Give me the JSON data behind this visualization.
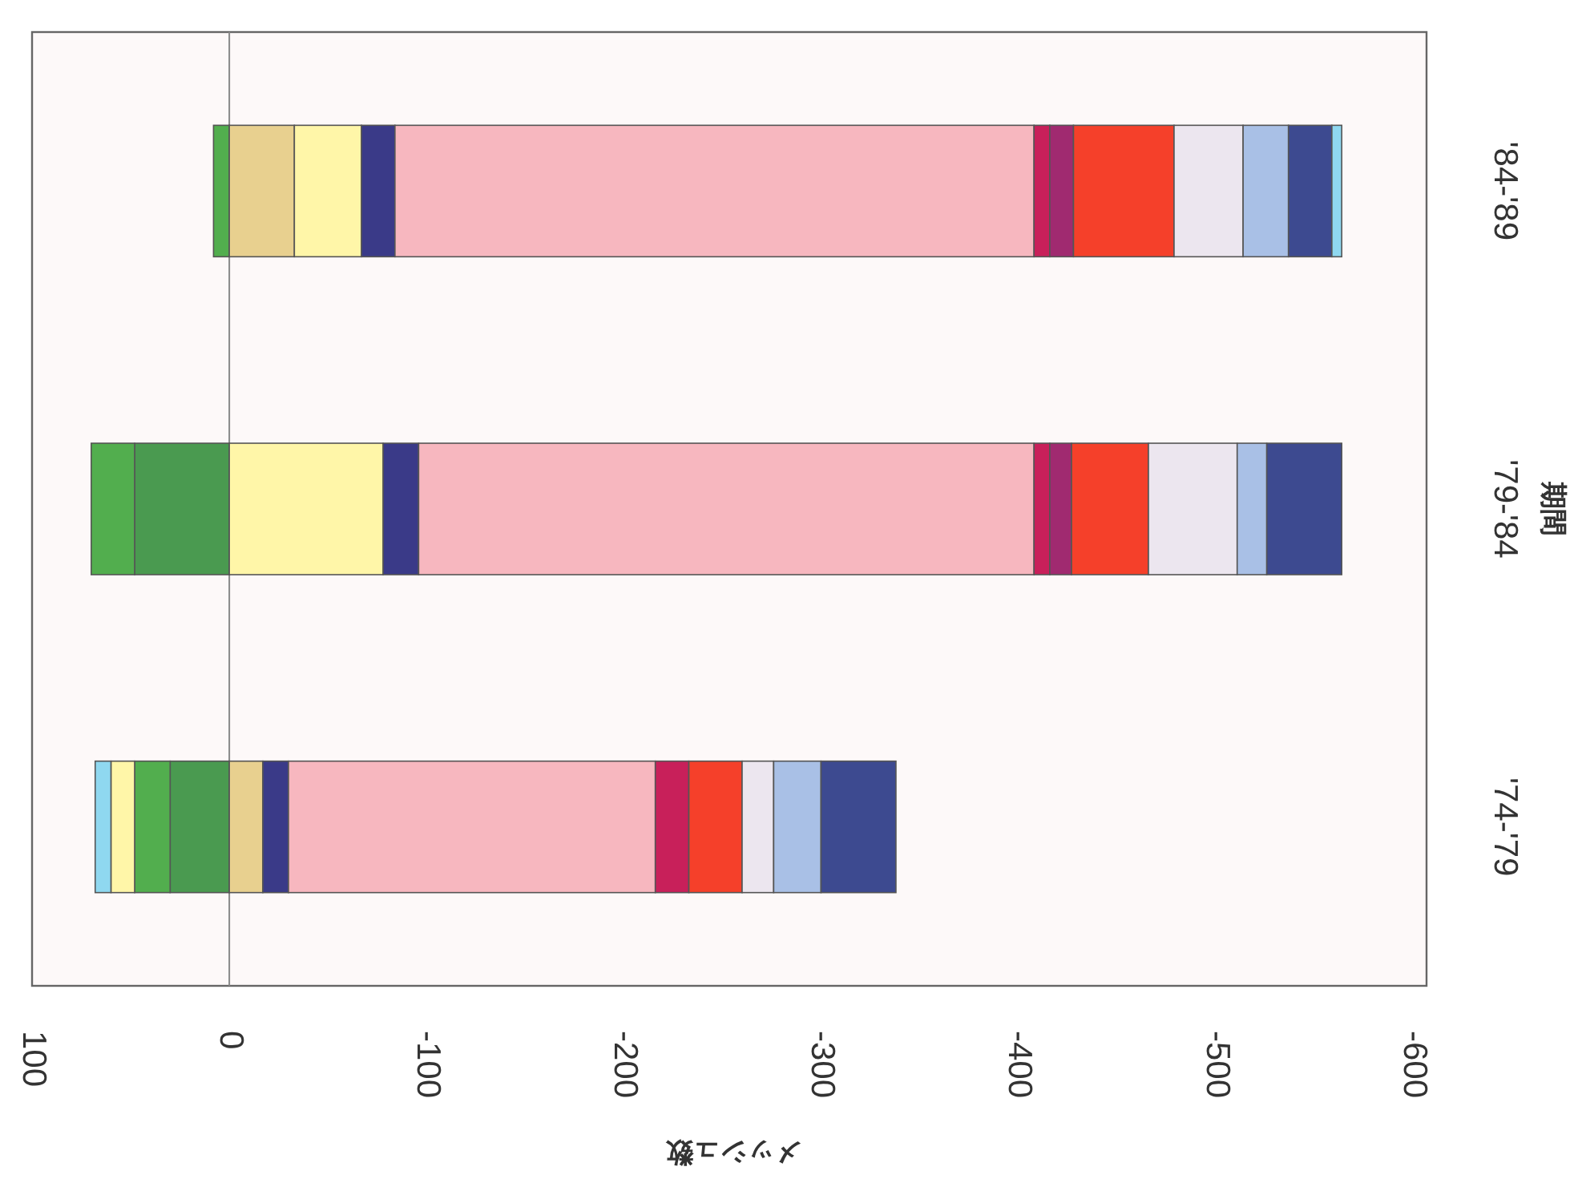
{
  "chart_data": {
    "type": "bar",
    "orientation": "horizontal",
    "stacked": true,
    "xlabel": "メッシュ数",
    "ylabel": "期間",
    "categories": [
      "'84-'89",
      "'79-'84",
      "'74-'79"
    ],
    "xlim": [
      100,
      -607
    ],
    "xticks": [
      100,
      0,
      -100,
      -200,
      -300,
      -400,
      -500,
      -600
    ],
    "ref_lines": [
      {
        "axis": "x",
        "value": 0,
        "color": "#888888"
      }
    ],
    "series": [
      {
        "color": "#4a9a50",
        "values": [
          0,
          48,
          30
        ]
      },
      {
        "color": "#52ae4e",
        "values": [
          8,
          22,
          18
        ]
      },
      {
        "color": "#e8d08f",
        "values": [
          -33,
          0,
          -17
        ]
      },
      {
        "color": "#fff6a8",
        "values": [
          -34,
          -78,
          12
        ]
      },
      {
        "color": "#3a3a88",
        "values": [
          -17,
          -18,
          -13
        ]
      },
      {
        "color": "#f7b7bf",
        "values": [
          -324,
          -312,
          -186
        ]
      },
      {
        "color": "#c8205a",
        "values": [
          -8,
          -8,
          -17
        ]
      },
      {
        "color": "#a02a70",
        "values": [
          -12,
          -11,
          0
        ]
      },
      {
        "color": "#f5402a",
        "values": [
          -51,
          -39,
          -27
        ]
      },
      {
        "color": "#ece6ef",
        "values": [
          -35,
          -45,
          -16
        ]
      },
      {
        "color": "#a9c0e6",
        "values": [
          -23,
          -15,
          -24
        ]
      },
      {
        "color": "#3d4a90",
        "values": [
          -22,
          -38,
          -38
        ]
      },
      {
        "color": "#8fd8f0",
        "values": [
          -5,
          0,
          8
        ]
      }
    ]
  }
}
